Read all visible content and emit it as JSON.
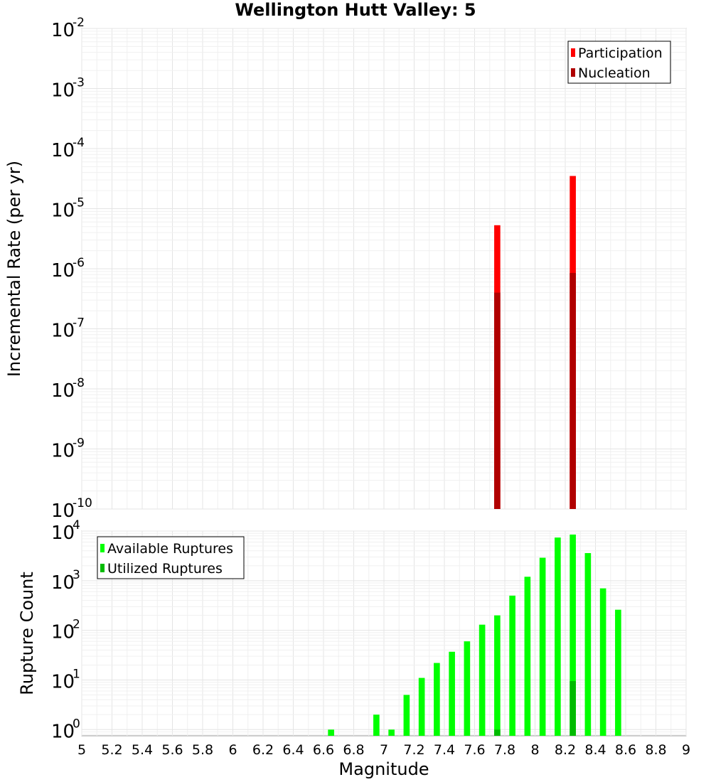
{
  "chart_data": [
    {
      "type": "bar",
      "title": "Wellington Hutt Valley: 5",
      "xlabel": "Magnitude",
      "ylabel": "Incremental Rate (per yr)",
      "yscale": "log",
      "xlim": [
        5,
        9
      ],
      "ylim": [
        1e-10,
        0.01
      ],
      "x_ticks": [
        "5",
        "5.2",
        "5.4",
        "5.6",
        "5.8",
        "6",
        "6.2",
        "6.4",
        "6.6",
        "6.8",
        "7",
        "7.2",
        "7.4",
        "7.6",
        "7.8",
        "8",
        "8.2",
        "8.4",
        "8.6",
        "8.8",
        "9"
      ],
      "y_ticks": [
        {
          "base": "10",
          "exp": "-2"
        },
        {
          "base": "10",
          "exp": "-3"
        },
        {
          "base": "10",
          "exp": "-4"
        },
        {
          "base": "10",
          "exp": "-5"
        },
        {
          "base": "10",
          "exp": "-6"
        },
        {
          "base": "10",
          "exp": "-7"
        },
        {
          "base": "10",
          "exp": "-8"
        },
        {
          "base": "10",
          "exp": "-9"
        },
        {
          "base": "10",
          "exp": "-10"
        }
      ],
      "legend": [
        {
          "label": "Participation",
          "color": "#ff0000"
        },
        {
          "label": "Nucleation",
          "color": "#b00000"
        }
      ],
      "legend_position": "top-right",
      "series": [
        {
          "name": "Participation",
          "color": "#ff0000",
          "x": [
            7.75,
            8.25
          ],
          "values": [
            5.3e-06,
            3.5e-05
          ]
        },
        {
          "name": "Nucleation",
          "color": "#b00000",
          "x": [
            7.75,
            8.25
          ],
          "values": [
            4e-07,
            8.5e-07
          ]
        }
      ]
    },
    {
      "type": "bar",
      "title": "",
      "xlabel": "Magnitude",
      "ylabel": "Rupture Count",
      "yscale": "log",
      "xlim": [
        5,
        9
      ],
      "ylim": [
        0.75,
        10000
      ],
      "y_ticks": [
        {
          "base": "10",
          "exp": "4"
        },
        {
          "base": "10",
          "exp": "3"
        },
        {
          "base": "10",
          "exp": "2"
        },
        {
          "base": "10",
          "exp": "1"
        },
        {
          "base": "10",
          "exp": "0"
        }
      ],
      "legend": [
        {
          "label": "Available Ruptures",
          "color": "#00ff00"
        },
        {
          "label": "Utilized Ruptures",
          "color": "#00bb00"
        }
      ],
      "legend_position": "top-left",
      "series": [
        {
          "name": "Available Ruptures",
          "color": "#00ff00",
          "x": [
            6.65,
            6.95,
            7.05,
            7.15,
            7.25,
            7.35,
            7.45,
            7.55,
            7.65,
            7.75,
            7.85,
            7.95,
            8.05,
            8.15,
            8.25,
            8.35,
            8.45,
            8.55
          ],
          "values": [
            1,
            2,
            1,
            5,
            11,
            22,
            37,
            60,
            130,
            200,
            500,
            1200,
            2900,
            7400,
            8500,
            3600,
            700,
            260
          ]
        },
        {
          "name": "Utilized Ruptures",
          "color": "#00bb00",
          "x": [
            7.75,
            8.25
          ],
          "values": [
            1,
            9.5
          ]
        }
      ]
    }
  ]
}
